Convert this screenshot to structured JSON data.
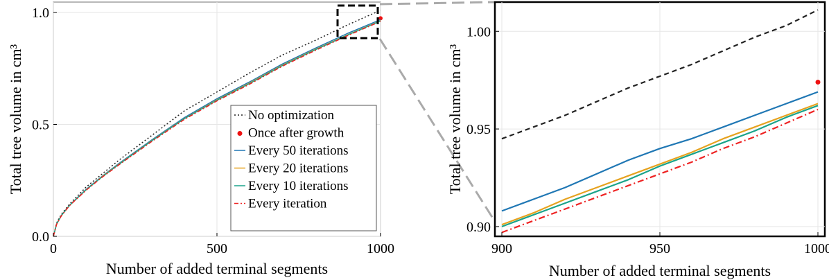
{
  "chart_data": [
    {
      "type": "line",
      "title": "",
      "xlabel": "Number of added terminal segments",
      "ylabel": "Total tree volume in cm³",
      "xlim": [
        0,
        1000
      ],
      "ylim": [
        0.0,
        1.0
      ],
      "xticks": [
        0,
        500,
        1000
      ],
      "xtick_labels": [
        "0",
        "500",
        "1000"
      ],
      "yticks": [
        0.0,
        0.5,
        1.0
      ],
      "ytick_labels": [
        "0.0",
        "0.5",
        "1.0"
      ],
      "grid": true,
      "legend_position": "bottom-right",
      "series": [
        {
          "name": "No optimization",
          "color": "#222222",
          "style": "dotted",
          "x": [
            0,
            10,
            25,
            50,
            100,
            150,
            200,
            300,
            400,
            500,
            600,
            700,
            800,
            900,
            1000
          ],
          "y": [
            0.0,
            0.06,
            0.1,
            0.145,
            0.22,
            0.28,
            0.34,
            0.45,
            0.56,
            0.645,
            0.73,
            0.81,
            0.875,
            0.945,
            1.01
          ]
        },
        {
          "name": "Once after growth",
          "color": "#ee1111",
          "style": "point",
          "x": [
            1000
          ],
          "y": [
            0.974
          ]
        },
        {
          "name": "Every 50 iterations",
          "color": "#1f77b4",
          "style": "solid",
          "x": [
            0,
            10,
            25,
            50,
            100,
            150,
            200,
            300,
            400,
            500,
            600,
            700,
            800,
            900,
            1000
          ],
          "y": [
            0.0,
            0.055,
            0.095,
            0.14,
            0.21,
            0.27,
            0.325,
            0.43,
            0.53,
            0.615,
            0.69,
            0.77,
            0.84,
            0.907,
            0.968
          ]
        },
        {
          "name": "Every 20 iterations",
          "color": "#e6a21f",
          "style": "solid",
          "x": [
            0,
            10,
            25,
            50,
            100,
            150,
            200,
            300,
            400,
            500,
            600,
            700,
            800,
            900,
            1000
          ],
          "y": [
            0.0,
            0.055,
            0.094,
            0.139,
            0.208,
            0.268,
            0.322,
            0.427,
            0.526,
            0.61,
            0.685,
            0.765,
            0.835,
            0.901,
            0.963
          ]
        },
        {
          "name": "Every 10 iterations",
          "color": "#1aa38a",
          "style": "solid",
          "x": [
            0,
            10,
            25,
            50,
            100,
            150,
            200,
            300,
            400,
            500,
            600,
            700,
            800,
            900,
            1000
          ],
          "y": [
            0.0,
            0.055,
            0.094,
            0.139,
            0.208,
            0.267,
            0.321,
            0.426,
            0.525,
            0.608,
            0.683,
            0.763,
            0.833,
            0.9,
            0.962
          ]
        },
        {
          "name": "Every iteration",
          "color": "#ee2222",
          "style": "dashdot",
          "x": [
            0,
            10,
            25,
            50,
            100,
            150,
            200,
            300,
            400,
            500,
            600,
            700,
            800,
            900,
            1000
          ],
          "y": [
            0.0,
            0.054,
            0.093,
            0.138,
            0.206,
            0.265,
            0.319,
            0.423,
            0.522,
            0.605,
            0.68,
            0.76,
            0.83,
            0.897,
            0.96
          ]
        }
      ]
    },
    {
      "type": "line",
      "title": "",
      "xlabel": "Number of added terminal segments",
      "ylabel": "Total tree volume in cm³",
      "xlim": [
        900,
        1000
      ],
      "ylim": [
        0.895,
        1.015
      ],
      "xticks": [
        900,
        950,
        1000
      ],
      "xtick_labels": [
        "900",
        "950",
        "1000"
      ],
      "yticks": [
        0.9,
        0.95,
        1.0
      ],
      "ytick_labels": [
        "0.90",
        "0.95",
        "1.00"
      ],
      "grid": true,
      "series": [
        {
          "name": "No optimization",
          "color": "#222222",
          "style": "dashed",
          "x": [
            900,
            910,
            920,
            930,
            940,
            950,
            960,
            970,
            980,
            990,
            1000
          ],
          "y": [
            0.945,
            0.951,
            0.957,
            0.964,
            0.971,
            0.977,
            0.983,
            0.99,
            0.997,
            1.003,
            1.011
          ]
        },
        {
          "name": "Once after growth",
          "color": "#ee1111",
          "style": "point",
          "x": [
            1000
          ],
          "y": [
            0.974
          ]
        },
        {
          "name": "Every 50 iterations",
          "color": "#1f77b4",
          "style": "solid",
          "x": [
            900,
            910,
            920,
            930,
            940,
            950,
            960,
            970,
            980,
            990,
            1000
          ],
          "y": [
            0.908,
            0.914,
            0.92,
            0.927,
            0.934,
            0.94,
            0.945,
            0.951,
            0.957,
            0.963,
            0.969
          ]
        },
        {
          "name": "Every 20 iterations",
          "color": "#e6a21f",
          "style": "solid",
          "x": [
            900,
            910,
            920,
            930,
            940,
            950,
            960,
            970,
            980,
            990,
            1000
          ],
          "y": [
            0.901,
            0.907,
            0.914,
            0.92,
            0.926,
            0.932,
            0.938,
            0.945,
            0.951,
            0.957,
            0.963
          ]
        },
        {
          "name": "Every 10 iterations",
          "color": "#1aa38a",
          "style": "solid",
          "x": [
            900,
            910,
            920,
            930,
            940,
            950,
            960,
            970,
            980,
            990,
            1000
          ],
          "y": [
            0.9,
            0.906,
            0.912,
            0.918,
            0.924,
            0.931,
            0.937,
            0.943,
            0.949,
            0.956,
            0.962
          ]
        },
        {
          "name": "Every iteration",
          "color": "#ee2222",
          "style": "dashdot",
          "x": [
            900,
            910,
            920,
            930,
            940,
            950,
            960,
            970,
            980,
            990,
            1000
          ],
          "y": [
            0.897,
            0.903,
            0.909,
            0.915,
            0.921,
            0.927,
            0.933,
            0.94,
            0.946,
            0.953,
            0.96
          ]
        }
      ]
    }
  ]
}
